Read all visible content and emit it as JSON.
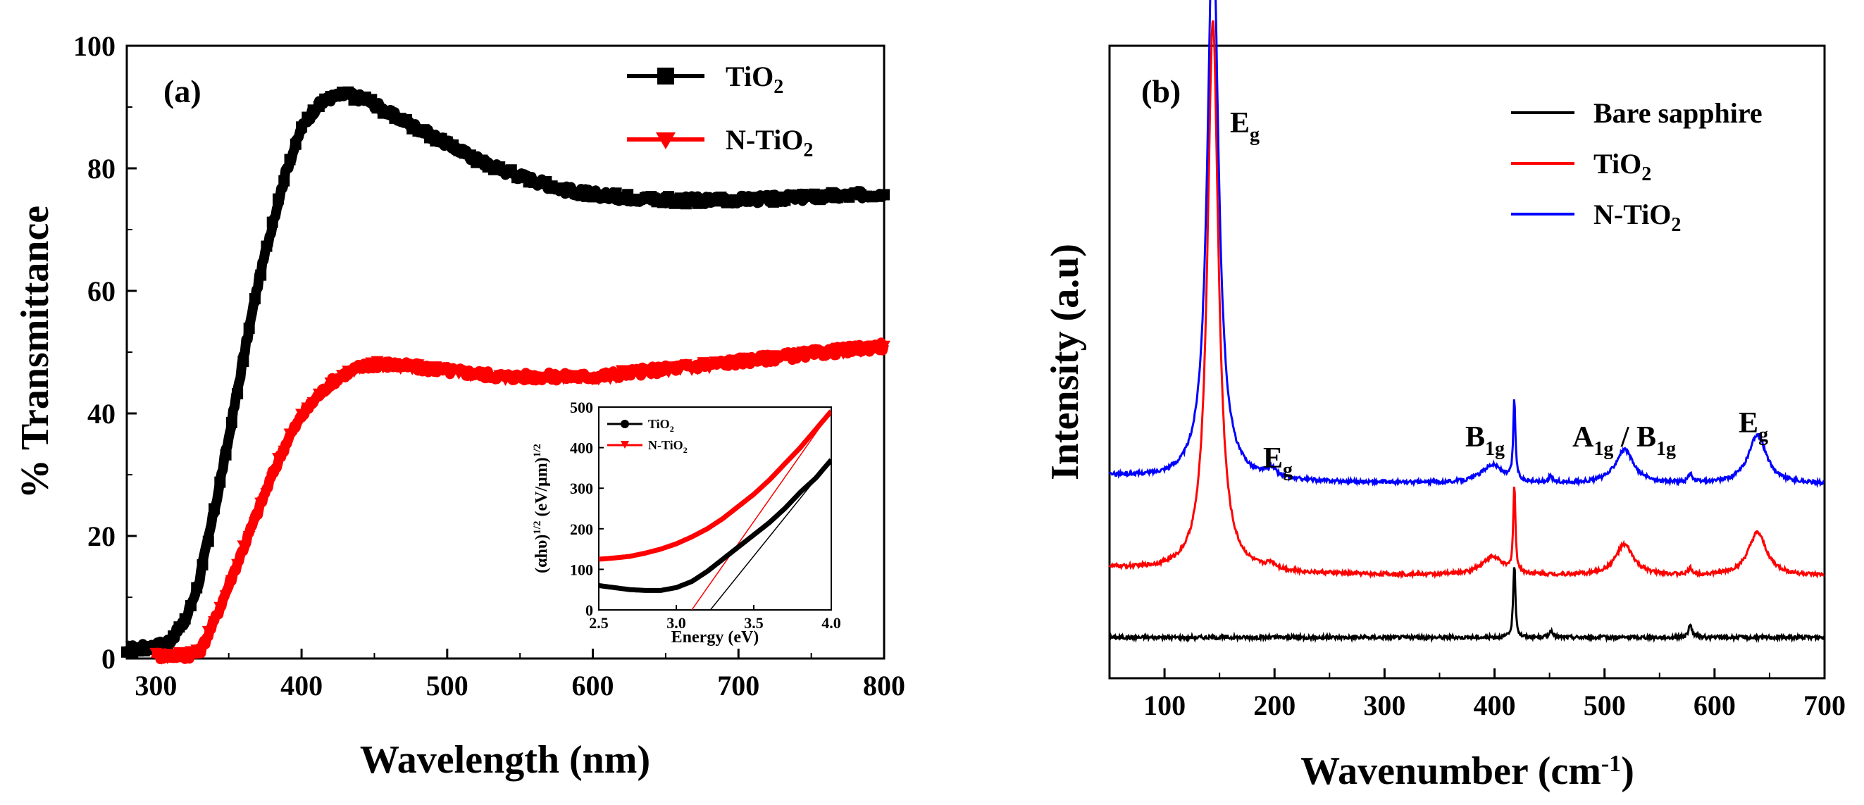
{
  "colors": {
    "black": "#000000",
    "red": "#ff0000",
    "blue": "#0000ff"
  },
  "chart_data": [
    {
      "type": "line",
      "panel_label": "(a)",
      "xlabel": "Wavelength (nm)",
      "ylabel": "% Transmittance",
      "xlim": [
        280,
        800
      ],
      "ylim": [
        0,
        100
      ],
      "xticks": [
        "300",
        "400",
        "500",
        "600",
        "700",
        "800"
      ],
      "yticks": [
        "0",
        "20",
        "40",
        "60",
        "80",
        "100"
      ],
      "legend": {
        "position": "top-right",
        "entries": [
          {
            "base": "TiO",
            "sub": "2"
          },
          {
            "base": "N-TiO",
            "sub": "2"
          }
        ]
      },
      "series": [
        {
          "name": "TiO2",
          "color": "#000000",
          "marker": "square",
          "x": [
            280,
            300,
            310,
            320,
            330,
            340,
            350,
            360,
            370,
            380,
            390,
            400,
            410,
            420,
            430,
            440,
            450,
            460,
            480,
            500,
            520,
            540,
            560,
            580,
            600,
            620,
            640,
            660,
            680,
            700,
            720,
            740,
            760,
            780,
            800
          ],
          "y": [
            1.5,
            2.0,
            3.0,
            6.0,
            13.0,
            24.0,
            36.0,
            49.0,
            61.0,
            71.0,
            80.0,
            86.5,
            90.0,
            91.5,
            92.0,
            91.5,
            90.5,
            89.0,
            86.5,
            84.0,
            81.5,
            79.5,
            78.0,
            76.5,
            75.8,
            75.3,
            75.0,
            74.8,
            74.8,
            74.9,
            75.0,
            75.2,
            75.4,
            75.6,
            76.0
          ]
        },
        {
          "name": "N-TiO2",
          "color": "#ff0000",
          "marker": "triangle-down",
          "x": [
            300,
            320,
            330,
            340,
            350,
            360,
            370,
            380,
            390,
            400,
            410,
            420,
            430,
            440,
            450,
            460,
            480,
            500,
            520,
            540,
            560,
            580,
            600,
            620,
            640,
            660,
            680,
            700,
            720,
            740,
            760,
            780,
            800
          ],
          "y": [
            0.5,
            0.5,
            1.0,
            6.0,
            12.0,
            18.0,
            24.0,
            30.0,
            35.5,
            39.5,
            42.5,
            45.0,
            46.5,
            47.5,
            48.0,
            48.0,
            47.5,
            47.0,
            46.5,
            46.0,
            46.0,
            46.0,
            46.0,
            46.5,
            47.0,
            47.5,
            48.0,
            48.5,
            49.0,
            49.5,
            50.0,
            50.5,
            51.0
          ]
        }
      ]
    },
    {
      "type": "line",
      "panel_label": "inset",
      "xlabel": "Energy (eV)",
      "ylabel": "(αhυ)1/2 (eV/μm)1/2",
      "ylabel_parts": {
        "a": "(αhυ)",
        "b": "1/2",
        "c": " (eV/μm)",
        "d": "1/2"
      },
      "xlim": [
        2.5,
        4.0
      ],
      "ylim": [
        0,
        500
      ],
      "xticks": [
        "2.5",
        "3.0",
        "3.5",
        "4.0"
      ],
      "yticks": [
        "0",
        "100",
        "200",
        "300",
        "400",
        "500"
      ],
      "legend": {
        "position": "top-left",
        "entries": [
          {
            "base": "TiO",
            "sub": "2"
          },
          {
            "base": "N-TiO",
            "sub": "2"
          }
        ]
      },
      "series": [
        {
          "name": "TiO2",
          "color": "#000000",
          "x": [
            2.5,
            2.6,
            2.7,
            2.8,
            2.9,
            3.0,
            3.1,
            3.2,
            3.3,
            3.4,
            3.5,
            3.6,
            3.7,
            3.8,
            3.9,
            4.0
          ],
          "y": [
            60,
            55,
            50,
            48,
            48,
            55,
            70,
            95,
            125,
            155,
            185,
            215,
            250,
            290,
            325,
            370
          ]
        },
        {
          "name": "N-TiO2",
          "color": "#ff0000",
          "x": [
            2.5,
            2.6,
            2.7,
            2.8,
            2.9,
            3.0,
            3.1,
            3.2,
            3.3,
            3.4,
            3.5,
            3.6,
            3.7,
            3.8,
            3.9,
            4.0
          ],
          "y": [
            125,
            128,
            132,
            140,
            150,
            163,
            180,
            200,
            225,
            255,
            285,
            320,
            360,
            400,
            445,
            490
          ]
        }
      ],
      "tangents": [
        {
          "color": "#ff0000",
          "x": [
            3.1,
            4.0
          ],
          "y": [
            0,
            490
          ]
        },
        {
          "color": "#000000",
          "x": [
            3.22,
            4.0
          ],
          "y": [
            0,
            370
          ]
        }
      ]
    },
    {
      "type": "line",
      "panel_label": "(b)",
      "xlabel": "Wavenumber (cm-1)",
      "xlabel_parts": {
        "main": "Wavenumber (cm",
        "sup": "-1",
        "close": ")"
      },
      "ylabel": "Intensity (a.u)",
      "xlim": [
        50,
        700
      ],
      "xticks": [
        "100",
        "200",
        "300",
        "400",
        "500",
        "600",
        "700"
      ],
      "legend": {
        "position": "top-right",
        "entries": [
          {
            "base": "Bare sapphire",
            "sub": ""
          },
          {
            "base": "TiO",
            "sub": "2"
          },
          {
            "base": "N-TiO",
            "sub": "2"
          }
        ]
      },
      "peak_labels": [
        {
          "base": "E",
          "sub": "g",
          "x": 144
        },
        {
          "base": "E",
          "sub": "g",
          "x": 197
        },
        {
          "base": "B",
          "sub": "1g",
          "x": 399
        },
        {
          "base": "A",
          "sub": "1g",
          "mid": " / B",
          "sub2": "1g",
          "x": 519
        },
        {
          "base": "E",
          "sub": "g",
          "x": 639
        }
      ],
      "series": [
        {
          "name": "Bare sapphire",
          "color": "#000000",
          "baseline": 0.0,
          "peaks": [
            {
              "x": 418,
              "h": 0.12,
              "w": 1.2
            },
            {
              "x": 451,
              "h": 0.01,
              "w": 2
            },
            {
              "x": 578,
              "h": 0.02,
              "w": 2
            }
          ]
        },
        {
          "name": "TiO2",
          "color": "#ff0000",
          "baseline": 0.1,
          "peaks": [
            {
              "x": 144,
              "h": 0.9,
              "w": 6
            },
            {
              "x": 197,
              "h": 0.01,
              "w": 5
            },
            {
              "x": 398,
              "h": 0.03,
              "w": 12
            },
            {
              "x": 418,
              "h": 0.14,
              "w": 1.2
            },
            {
              "x": 518,
              "h": 0.05,
              "w": 10
            },
            {
              "x": 578,
              "h": 0.01,
              "w": 2
            },
            {
              "x": 639,
              "h": 0.07,
              "w": 10
            }
          ]
        },
        {
          "name": "N-TiO2",
          "color": "#0000ff",
          "baseline": 0.25,
          "peaks": [
            {
              "x": 144,
              "h": 0.92,
              "w": 6
            },
            {
              "x": 197,
              "h": 0.015,
              "w": 5
            },
            {
              "x": 398,
              "h": 0.03,
              "w": 12
            },
            {
              "x": 418,
              "h": 0.13,
              "w": 1.2
            },
            {
              "x": 451,
              "h": 0.01,
              "w": 2
            },
            {
              "x": 518,
              "h": 0.055,
              "w": 10
            },
            {
              "x": 578,
              "h": 0.015,
              "w": 2
            },
            {
              "x": 639,
              "h": 0.08,
              "w": 10
            }
          ]
        }
      ]
    }
  ]
}
